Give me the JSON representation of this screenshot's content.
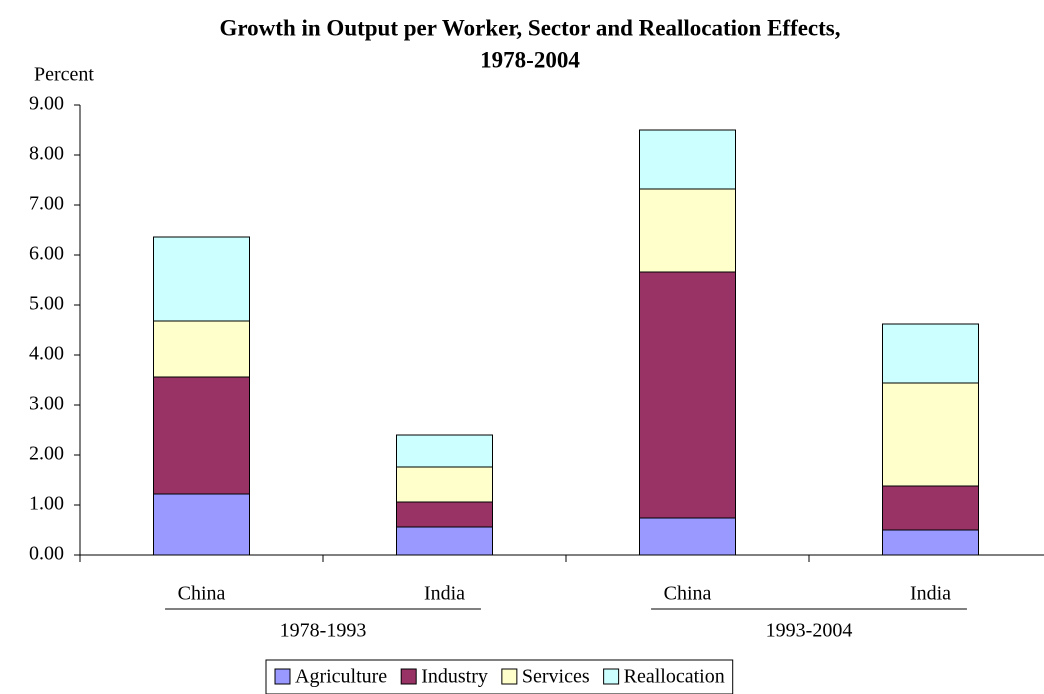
{
  "chart_data": {
    "type": "stacked_bar",
    "title": [
      "Growth in Output per Worker, Sector and Reallocation Effects,",
      "1978-2004"
    ],
    "y_label": "Percent",
    "categories": [
      "China",
      "India",
      "China",
      "India"
    ],
    "groups": [
      "1978-1993",
      "1993-2004"
    ],
    "series": [
      {
        "name": "Agriculture",
        "color": "#9999ff",
        "values": [
          1.22,
          0.56,
          0.74,
          0.5
        ]
      },
      {
        "name": "Industry",
        "color": "#993366",
        "values": [
          2.34,
          0.5,
          4.92,
          0.88
        ]
      },
      {
        "name": "Services",
        "color": "#ffffcc",
        "values": [
          1.12,
          0.7,
          1.66,
          2.06
        ]
      },
      {
        "name": "Reallocation",
        "color": "#ccffff",
        "values": [
          1.68,
          0.64,
          1.18,
          1.18
        ]
      }
    ],
    "ylim": [
      0,
      9
    ],
    "yticks": [
      {
        "value": 0,
        "label": "0.00"
      },
      {
        "value": 1,
        "label": "1.00"
      },
      {
        "value": 2,
        "label": "2.00"
      },
      {
        "value": 3,
        "label": "3.00"
      },
      {
        "value": 4,
        "label": "4.00"
      },
      {
        "value": 5,
        "label": "5.00"
      },
      {
        "value": 6,
        "label": "6.00"
      },
      {
        "value": 7,
        "label": "7.00"
      },
      {
        "value": 8,
        "label": "8.00"
      },
      {
        "value": 9,
        "label": "9.00"
      }
    ],
    "legend": "bottom"
  }
}
